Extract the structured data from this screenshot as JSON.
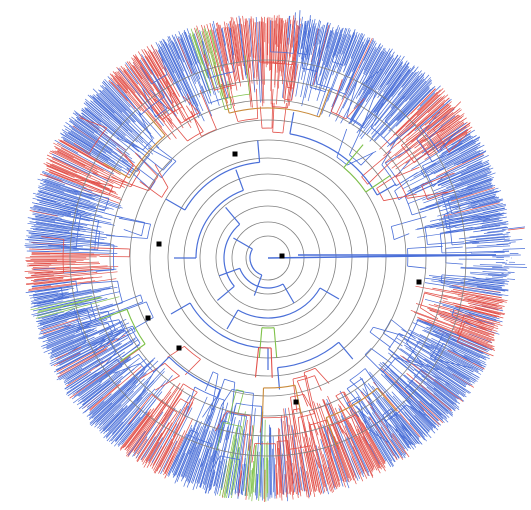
{
  "figure": {
    "type": "circular-phylogenetic-tree",
    "colors": {
      "background": "#ffffff",
      "primary_branches": "#4a6fd8",
      "secondary_branches": "#e2514a",
      "tertiary_branches": "#7fc24a",
      "quaternary_branches": "#c98b3c",
      "rings": "#808080",
      "node_markers": "#000000"
    },
    "concentric_ring_count": 11,
    "node_marker_count": 8,
    "legend": null,
    "labels": []
  }
}
